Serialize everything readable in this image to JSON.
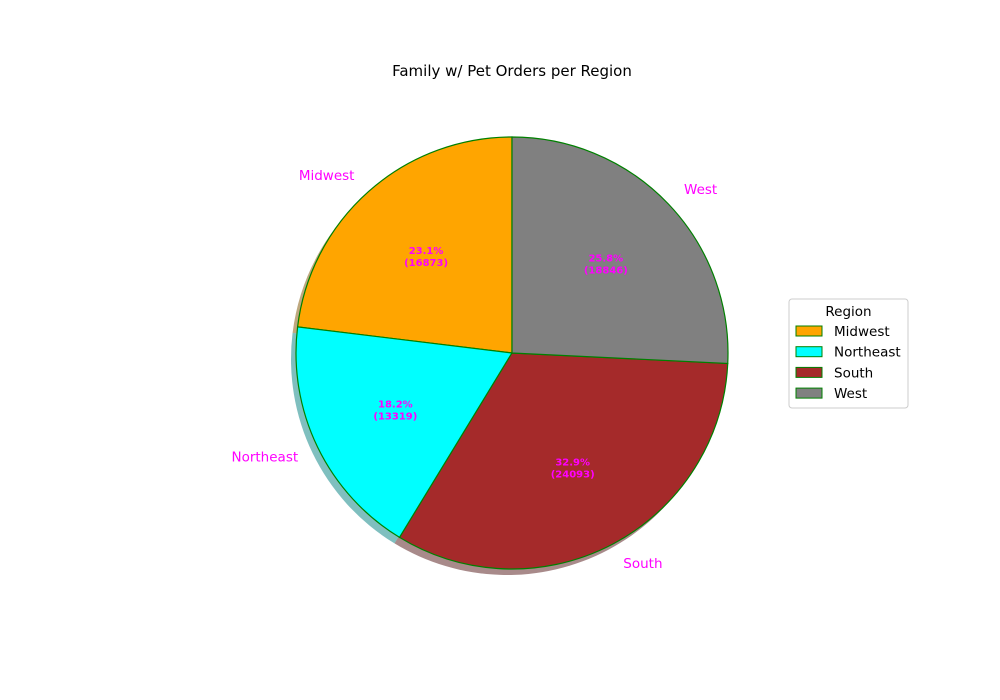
{
  "chart_data": {
    "type": "pie",
    "title": "Family w/ Pet Orders per Region",
    "categories": [
      "Midwest",
      "Northeast",
      "South",
      "West"
    ],
    "values": [
      16873,
      13319,
      24093,
      18846
    ],
    "percent_labels": [
      "23.1%\n(16873)",
      "18.2%\n(13319)",
      "32.9%\n(24093)",
      "25.8%\n(18846)"
    ],
    "colors": [
      "#FFA500",
      "#00FFFF",
      "#A52A2A",
      "#808080"
    ],
    "edge_color": "#008000",
    "label_color": "#FF00FF",
    "pct_color": "#FF00FF",
    "start_angle_deg": 90,
    "direction": "counterclockwise",
    "shadow": true,
    "legend": {
      "title": "Region",
      "placement": "center-right"
    }
  }
}
